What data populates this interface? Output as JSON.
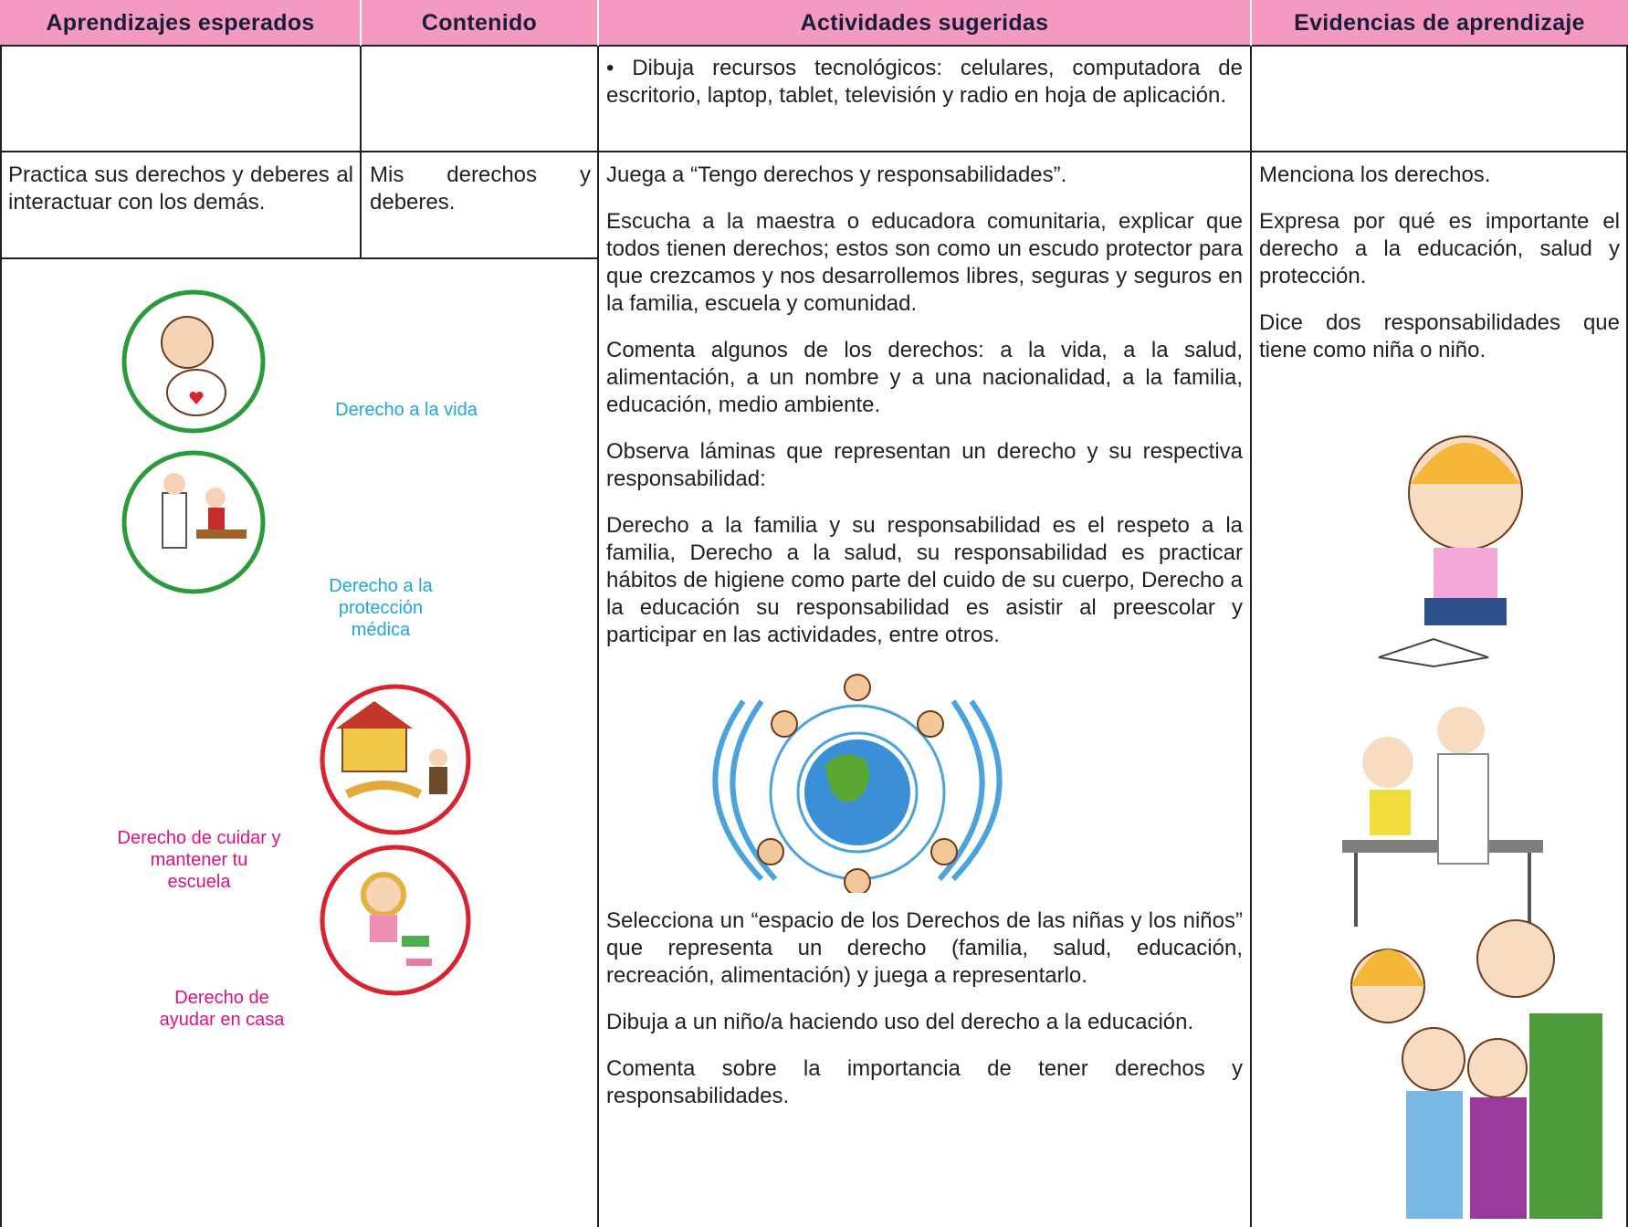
{
  "header": [
    "Aprendizajes esperados",
    "Contenido",
    "Actividades sugeridas",
    "Evidencias de aprendizaje"
  ],
  "row1": {
    "activity": "• Dibuja recursos tecnológicos: celulares, computadora de escritorio, laptop, tablet, televisión y radio en hoja de aplicación."
  },
  "row2": {
    "learning": "Practica sus derechos y deberes al interactuar con los demás.",
    "content": "Mis derechos y deberes.",
    "activities_before": [
      "Juega a “Tengo derechos y responsabilidades”.",
      "Escucha a la maestra o educadora comunitaria, explicar que todos tienen derechos; estos son como un escudo protector para que crezcamos y nos desarrollemos libres, seguras y seguros en la familia, escuela y comunidad.",
      "Comenta algunos de los derechos: a la vida, a la salud, alimentación, a un nombre y a una nacionalidad, a la familia, educación, medio ambiente.",
      "Observa láminas que representan un derecho y su respectiva responsabilidad:",
      "Derecho a la familia y su responsabilidad es el respeto a la familia, Derecho a la salud, su responsabilidad es practicar hábitos de higiene como parte del cuido de su cuerpo, Derecho a la educación su responsabilidad es asistir al preescolar y participar en las actividades, entre otros."
    ],
    "activities_after": [
      "Selecciona un “espacio de los Derechos de las niñas y los niños” que representa un derecho (familia, salud, educación, recreación, alimentación) y juega a representarlo.",
      "Dibuja a un niño/a haciendo uso del derecho a la educación.",
      "Comenta sobre la importancia de tener derechos y responsabilidades."
    ],
    "evidence": [
      "Menciona los derechos.",
      "Expresa por qué es importante el derecho a la educación, salud y protección.",
      "Dice dos responsabilidades que tiene como niña o niño."
    ]
  },
  "illustrations": [
    "Derecho a la vida",
    "Derecho a la protección médica",
    "Derecho de cuidar y mantener tu escuela",
    "Derecho de ayudar en casa"
  ]
}
